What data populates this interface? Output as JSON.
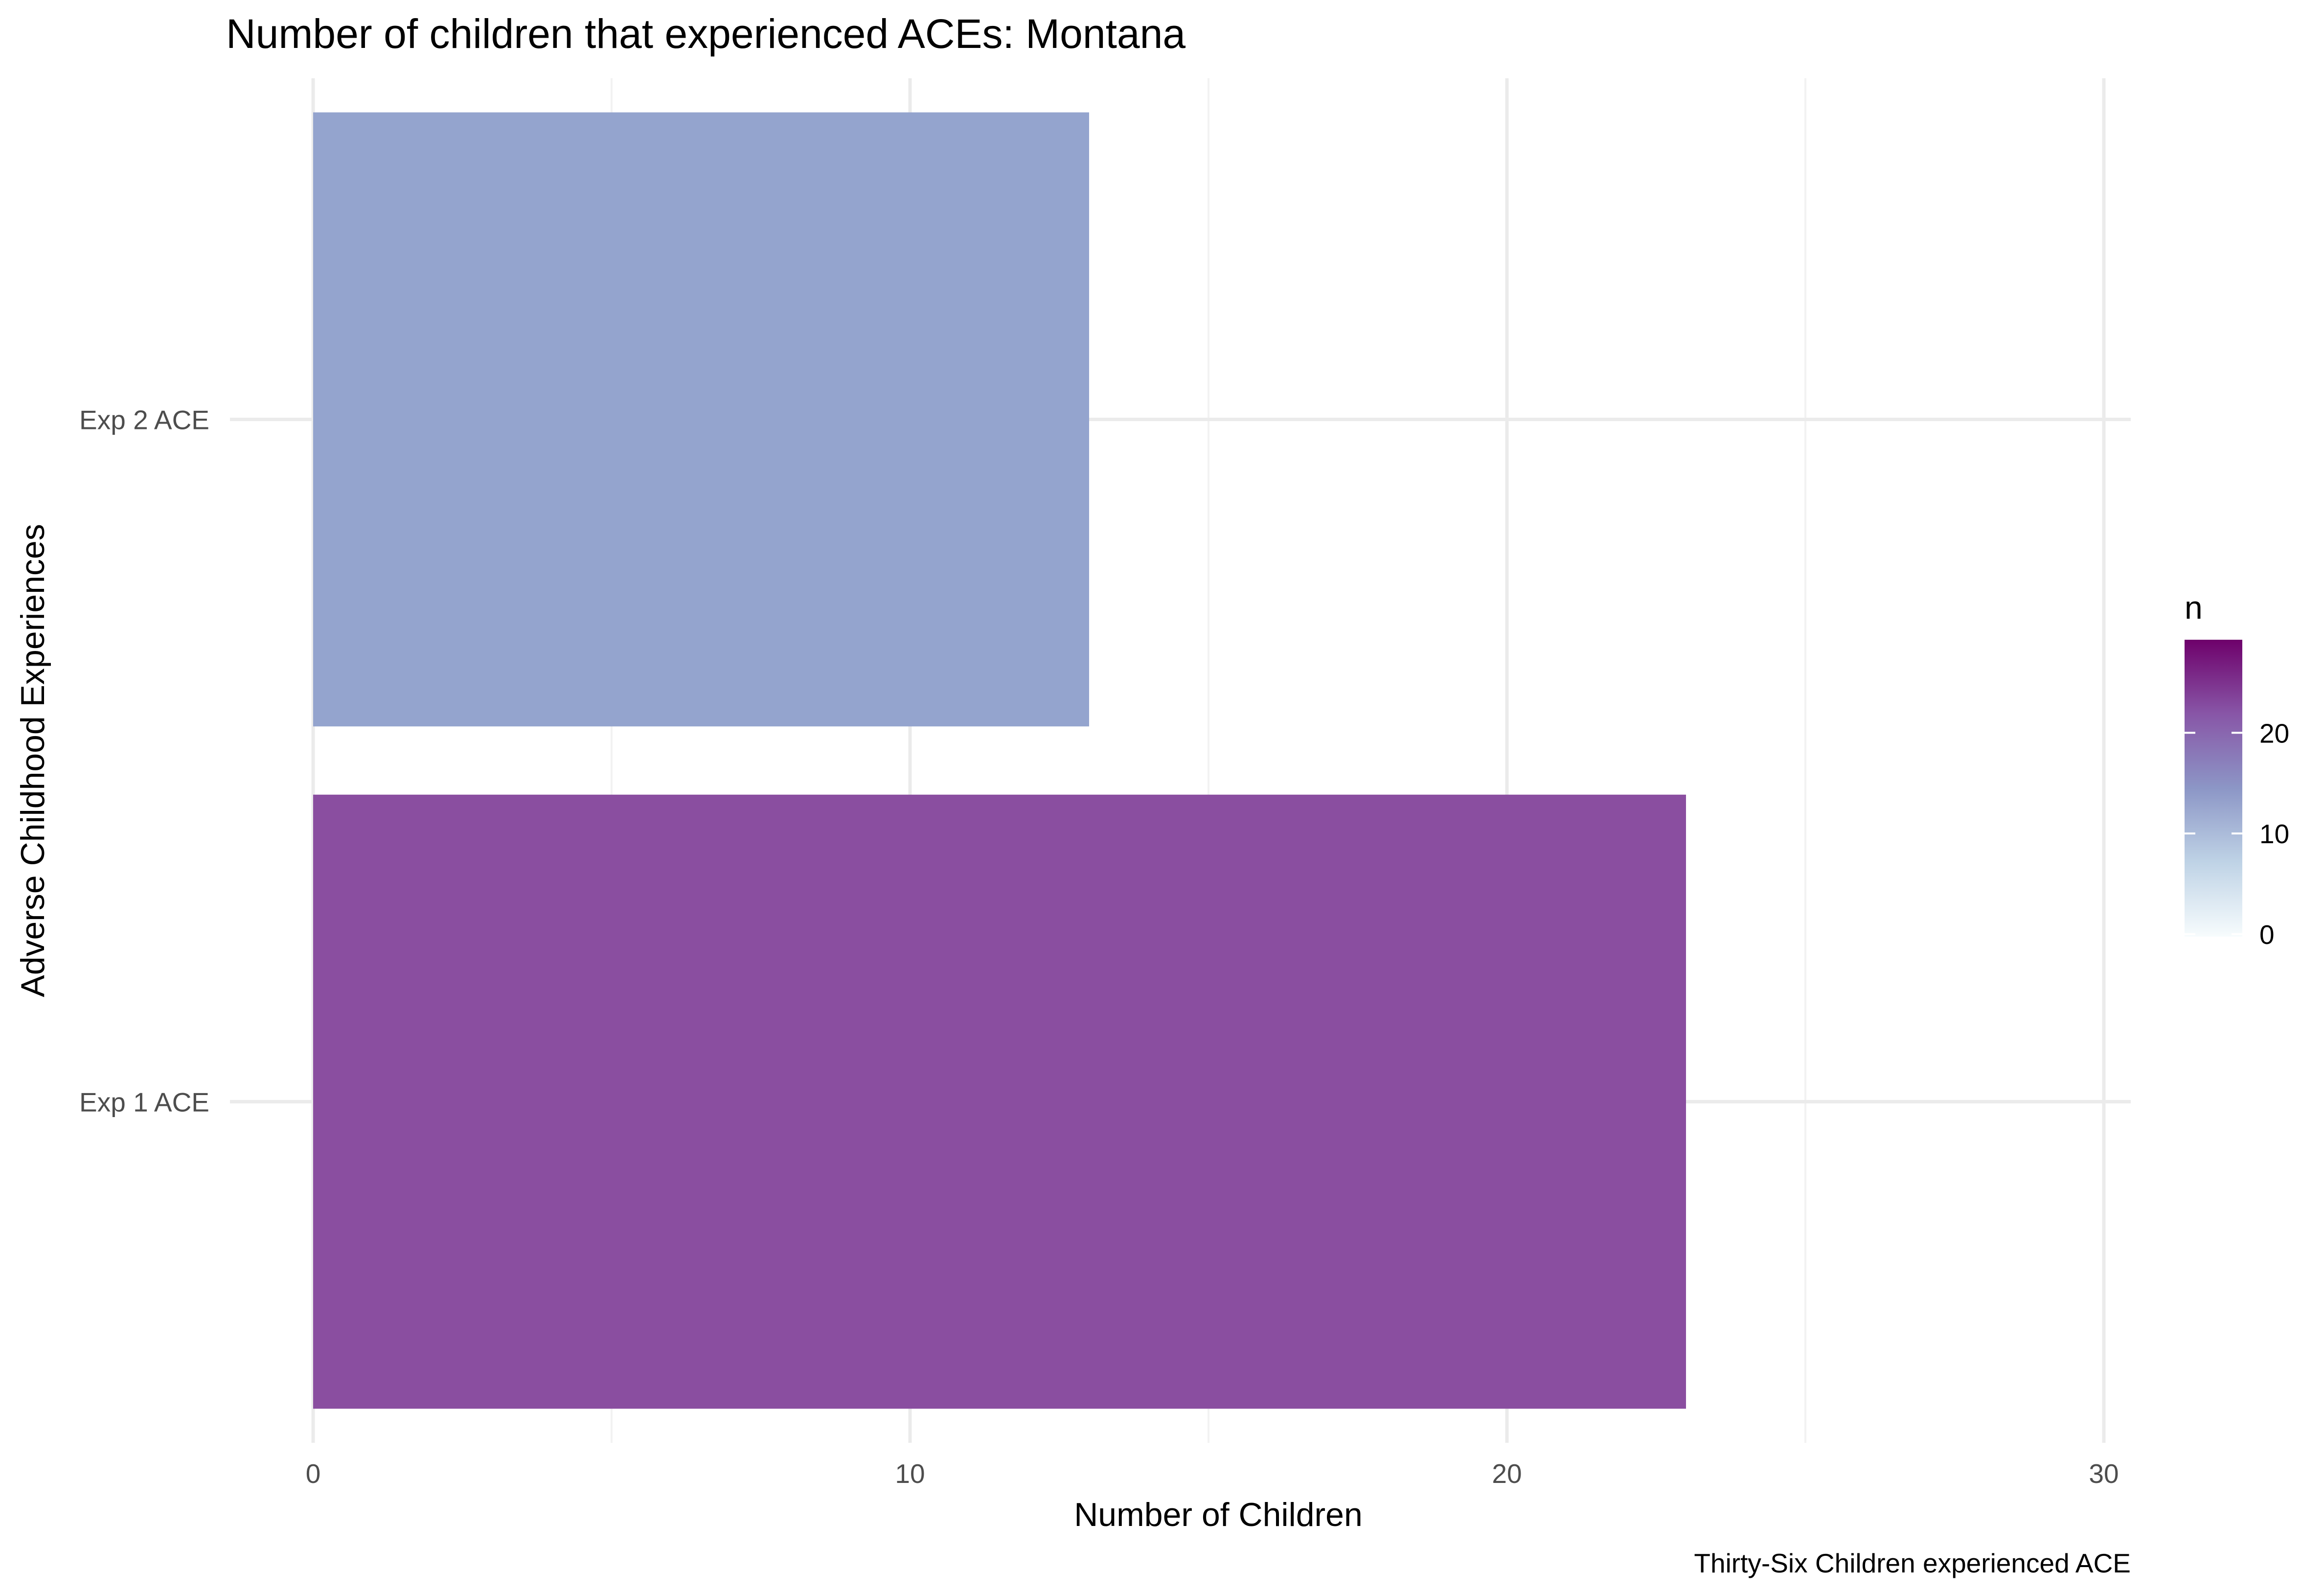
{
  "chart_data": {
    "type": "bar",
    "orientation": "horizontal",
    "title": "Number of children that experienced ACEs: Montana",
    "xlabel": "Number of Children",
    "ylabel": "Adverse Childhood Experiences",
    "caption": "Thirty-Six Children experienced ACE",
    "categories": [
      "Exp 1 ACE",
      "Exp 2 ACE"
    ],
    "values": [
      23,
      13
    ],
    "bar_colors": [
      "#8a4ea0",
      "#94a4ce"
    ],
    "xlim": [
      0,
      30
    ],
    "x_ticks": [
      0,
      10,
      20,
      30
    ],
    "grid": true,
    "legend": {
      "title": "n",
      "type": "colorbar",
      "ticks": [
        0,
        10,
        20
      ],
      "range": [
        0,
        29
      ],
      "colors": [
        "#f7fcfd",
        "#bfd3e6",
        "#8c96c6",
        "#8856a7",
        "#6e016b"
      ],
      "placement": "right"
    }
  }
}
